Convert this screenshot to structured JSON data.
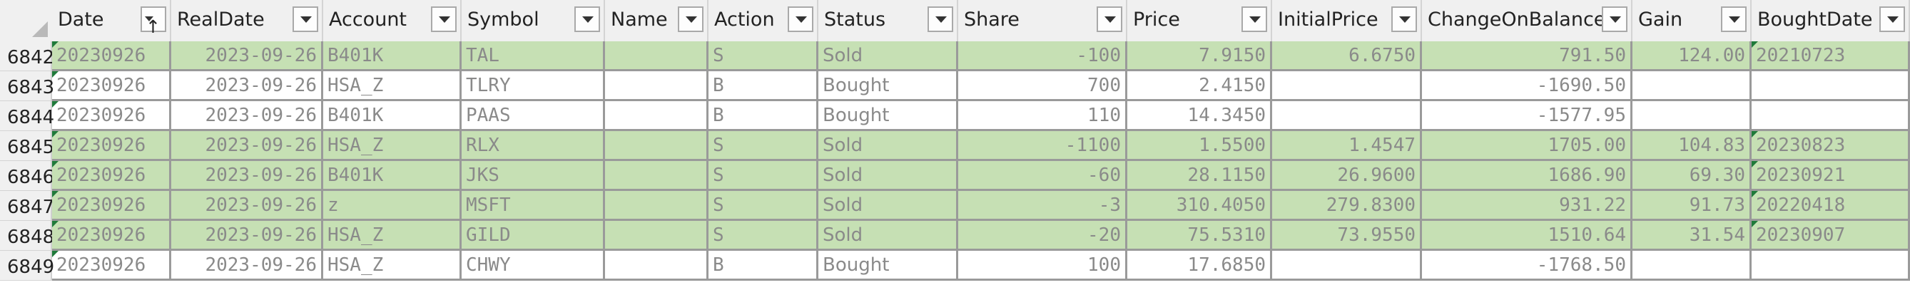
{
  "columns": [
    {
      "key": "date",
      "label": "Date",
      "align": "left",
      "sorted": true
    },
    {
      "key": "realdate",
      "label": "RealDate",
      "align": "right"
    },
    {
      "key": "account",
      "label": "Account",
      "align": "left"
    },
    {
      "key": "symbol",
      "label": "Symbol",
      "align": "left"
    },
    {
      "key": "name",
      "label": "Name",
      "align": "left"
    },
    {
      "key": "action",
      "label": "Action",
      "align": "left"
    },
    {
      "key": "status",
      "label": "Status",
      "align": "left",
      "sans": true
    },
    {
      "key": "share",
      "label": "Share",
      "align": "right"
    },
    {
      "key": "price",
      "label": "Price",
      "align": "right"
    },
    {
      "key": "initialprice",
      "label": "InitialPrice",
      "align": "right"
    },
    {
      "key": "changeonbalance",
      "label": "ChangeOnBalance",
      "align": "right"
    },
    {
      "key": "gain",
      "label": "Gain",
      "align": "right"
    },
    {
      "key": "boughtdate",
      "label": "BoughtDate",
      "align": "left"
    }
  ],
  "icons": {
    "filter": "filter-dropdown-icon",
    "sort": "sort-ascending-icon"
  },
  "colors": {
    "highlight": "#c6e0b4",
    "error_flag": "#1f7a3a"
  },
  "rows": [
    {
      "num": "6842",
      "highlight": true,
      "flags": [
        "date",
        "boughtdate"
      ],
      "cells": {
        "date": "20230926",
        "realdate": "2023-09-26",
        "account": "B401K",
        "symbol": "TAL",
        "name": "",
        "action": "S",
        "status": "Sold",
        "share": "-100",
        "price": "7.9150",
        "initialprice": "6.6750",
        "changeonbalance": "791.50",
        "gain": "124.00",
        "boughtdate": "20210723"
      }
    },
    {
      "num": "6843",
      "highlight": false,
      "flags": [
        "date"
      ],
      "cells": {
        "date": "20230926",
        "realdate": "2023-09-26",
        "account": "HSA_Z",
        "symbol": "TLRY",
        "name": "",
        "action": "B",
        "status": "Bought",
        "share": "700",
        "price": "2.4150",
        "initialprice": "",
        "changeonbalance": "-1690.50",
        "gain": "",
        "boughtdate": ""
      }
    },
    {
      "num": "6844",
      "highlight": false,
      "flags": [
        "date"
      ],
      "cells": {
        "date": "20230926",
        "realdate": "2023-09-26",
        "account": "B401K",
        "symbol": "PAAS",
        "name": "",
        "action": "B",
        "status": "Bought",
        "share": "110",
        "price": "14.3450",
        "initialprice": "",
        "changeonbalance": "-1577.95",
        "gain": "",
        "boughtdate": ""
      }
    },
    {
      "num": "6845",
      "highlight": true,
      "flags": [
        "date",
        "boughtdate"
      ],
      "cells": {
        "date": "20230926",
        "realdate": "2023-09-26",
        "account": "HSA_Z",
        "symbol": "RLX",
        "name": "",
        "action": "S",
        "status": "Sold",
        "share": "-1100",
        "price": "1.5500",
        "initialprice": "1.4547",
        "changeonbalance": "1705.00",
        "gain": "104.83",
        "boughtdate": "20230823"
      }
    },
    {
      "num": "6846",
      "highlight": true,
      "flags": [
        "date",
        "boughtdate"
      ],
      "cells": {
        "date": "20230926",
        "realdate": "2023-09-26",
        "account": "B401K",
        "symbol": "JKS",
        "name": "",
        "action": "S",
        "status": "Sold",
        "share": "-60",
        "price": "28.1150",
        "initialprice": "26.9600",
        "changeonbalance": "1686.90",
        "gain": "69.30",
        "boughtdate": "20230921"
      }
    },
    {
      "num": "6847",
      "highlight": true,
      "flags": [
        "date",
        "boughtdate"
      ],
      "cells": {
        "date": "20230926",
        "realdate": "2023-09-26",
        "account": "z",
        "symbol": "MSFT",
        "name": "",
        "action": "S",
        "status": "Sold",
        "share": "-3",
        "price": "310.4050",
        "initialprice": "279.8300",
        "changeonbalance": "931.22",
        "gain": "91.73",
        "boughtdate": "20220418"
      }
    },
    {
      "num": "6848",
      "highlight": true,
      "flags": [
        "date",
        "boughtdate"
      ],
      "cells": {
        "date": "20230926",
        "realdate": "2023-09-26",
        "account": "HSA_Z",
        "symbol": "GILD",
        "name": "",
        "action": "S",
        "status": "Sold",
        "share": "-20",
        "price": "75.5310",
        "initialprice": "73.9550",
        "changeonbalance": "1510.64",
        "gain": "31.54",
        "boughtdate": "20230907"
      }
    },
    {
      "num": "6849",
      "highlight": false,
      "flags": [
        "date"
      ],
      "cells": {
        "date": "20230926",
        "realdate": "2023-09-26",
        "account": "HSA_Z",
        "symbol": "CHWY",
        "name": "",
        "action": "B",
        "status": "Bought",
        "share": "100",
        "price": "17.6850",
        "initialprice": "",
        "changeonbalance": "-1768.50",
        "gain": "",
        "boughtdate": ""
      }
    }
  ]
}
